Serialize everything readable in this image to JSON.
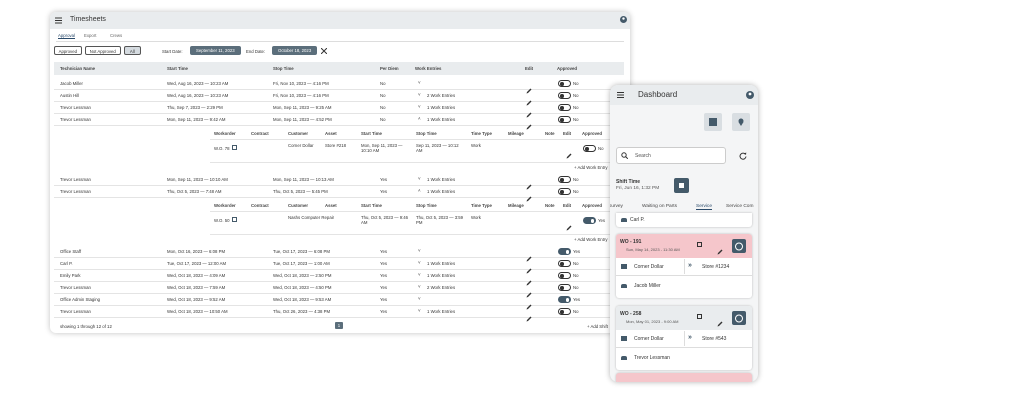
{
  "timesheets": {
    "title": "Timesheets",
    "tabs": [
      "Approval",
      "Export",
      "Crews"
    ],
    "filters": [
      "Approved",
      "Not Approved",
      "All"
    ],
    "start_label": "Start Date:",
    "start_date": "September 11, 2023",
    "end_label": "End Date:",
    "end_date": "October 18, 2023",
    "columns": [
      "Technician Name",
      "Start Time",
      "Stop Time",
      "Per Diem",
      "Work Entries",
      "Edit",
      "Approved"
    ],
    "sub_columns": [
      "Workorder",
      "Contract",
      "Customer",
      "Asset",
      "Start Time",
      "Stop Time",
      "Time Type",
      "Mileage",
      "Note",
      "Edit",
      "Approved"
    ],
    "add_work_entry": "+ Add Work Entry",
    "rows": [
      {
        "name": "Jacob Miller",
        "start": "Wed, Aug 16, 2023 — 10:23 AM",
        "stop": "Fri, Nov 10, 2023 — 4:16 PM",
        "per_diem": "No",
        "entries": null,
        "approved": "No"
      },
      {
        "name": "Austin Hill",
        "start": "Wed, Aug 16, 2023 — 10:23 AM",
        "stop": "Fri, Nov 10, 2023 — 4:16 PM",
        "per_diem": "No",
        "entries": "2 Work Entries",
        "approved": "No"
      },
      {
        "name": "Trevor Lessman",
        "start": "Thu, Sep 7, 2023 — 2:29 PM",
        "stop": "Mon, Sep 11, 2023 — 9:25 AM",
        "per_diem": "No",
        "entries": "1 Work Entries",
        "approved": "No"
      },
      {
        "name": "Trevor Lessman",
        "start": "Mon, Sep 11, 2023 — 9:42 AM",
        "stop": "Mon, Sep 11, 2023 — 4:52 PM",
        "per_diem": "No",
        "entries": "1 Work Entries",
        "approved": "No",
        "sub": {
          "workorder": "W.O. 78",
          "customer": "Corner Dollar",
          "asset": "Store #218",
          "start": "Mon, Sep 11, 2023 — 10:10 AM",
          "stop": "Sep 11, 2023 — 10:12 AM",
          "time_type": "Work",
          "approved": "No"
        }
      },
      {
        "name": "Trevor Lessman",
        "start": "Mon, Sep 11, 2023 — 10:10 AM",
        "stop": "Mon, Sep 11, 2023 — 10:13 AM",
        "per_diem": "Yes",
        "entries": "1 Work Entries",
        "approved": "No"
      },
      {
        "name": "Trevor Lessman",
        "start": "Thu, Oct 5, 2023 — 7:48 AM",
        "stop": "Thu, Oct 5, 2023 — 5:45 PM",
        "per_diem": "Yes",
        "entries": "1 Work Entries",
        "approved": "No",
        "sub": {
          "workorder": "W.O. 50",
          "customer": "Nashs Computer Repair",
          "start": "Thu, Oct 5, 2023 — 9:46 AM",
          "stop": "Thu, Oct 5, 2023 — 3:59 PM",
          "time_type": "Work",
          "approved": "Yes"
        }
      },
      {
        "name": "Office Staff",
        "start": "Mon, Oct 16, 2023 — 6:08 PM",
        "stop": "Tue, Oct 17, 2023 — 6:08 PM",
        "per_diem": "Yes",
        "entries": null,
        "approved": "Yes"
      },
      {
        "name": "Carl P.",
        "start": "Tue, Oct 17, 2023 — 12:00 AM",
        "stop": "Tue, Oct 17, 2023 — 1:00 AM",
        "per_diem": "Yes",
        "entries": "1 Work Entries",
        "approved": "No"
      },
      {
        "name": "Emily Park",
        "start": "Wed, Oct 18, 2023 — 4:09 AM",
        "stop": "Wed, Oct 18, 2023 — 2:50 PM",
        "per_diem": "Yes",
        "entries": "1 Work Entries",
        "approved": "No"
      },
      {
        "name": "Trevor Lessman",
        "start": "Wed, Oct 18, 2023 — 7:59 AM",
        "stop": "Wed, Oct 18, 2023 — 4:50 PM",
        "per_diem": "Yes",
        "entries": "2 Work Entries",
        "approved": "No"
      },
      {
        "name": "Office Admin Staging",
        "start": "Wed, Oct 18, 2023 — 9:52 AM",
        "stop": "Wed, Oct 18, 2023 — 9:53 AM",
        "per_diem": "Yes",
        "entries": null,
        "approved": "Yes"
      },
      {
        "name": "Trevor Lessman",
        "start": "Wed, Oct 18, 2023 — 10:50 AM",
        "stop": "Thu, Oct 26, 2023 — 4:38 PM",
        "per_diem": "Yes",
        "entries": "1 Work Entries",
        "approved": "No"
      }
    ],
    "footer": "showing 1 through 12 of 12",
    "page": "1",
    "add_shift": "+ Add Shift"
  },
  "mobile": {
    "title": "Dashboard",
    "search": "Search",
    "shift_label": "Shift Time",
    "shift_time": "Fri, Jun 16, 1:32 PM",
    "tabs": [
      "Survey",
      "Waiting on Parts",
      "Service",
      "Service Com"
    ],
    "first_person": "Carl P.",
    "cards": [
      {
        "wo": "WO - 191",
        "date": "Sun, May 14, 2023 - 11:30 AM",
        "customer": "Corner Dollar",
        "store": "Store #1234",
        "tech": "Jacob Miller"
      },
      {
        "wo": "WO - 258",
        "date": "Mon, May 01, 2023 - 9:00 AM",
        "customer": "Corner Dollar",
        "store": "Store #543",
        "tech": "Trevor Lessman"
      }
    ]
  }
}
